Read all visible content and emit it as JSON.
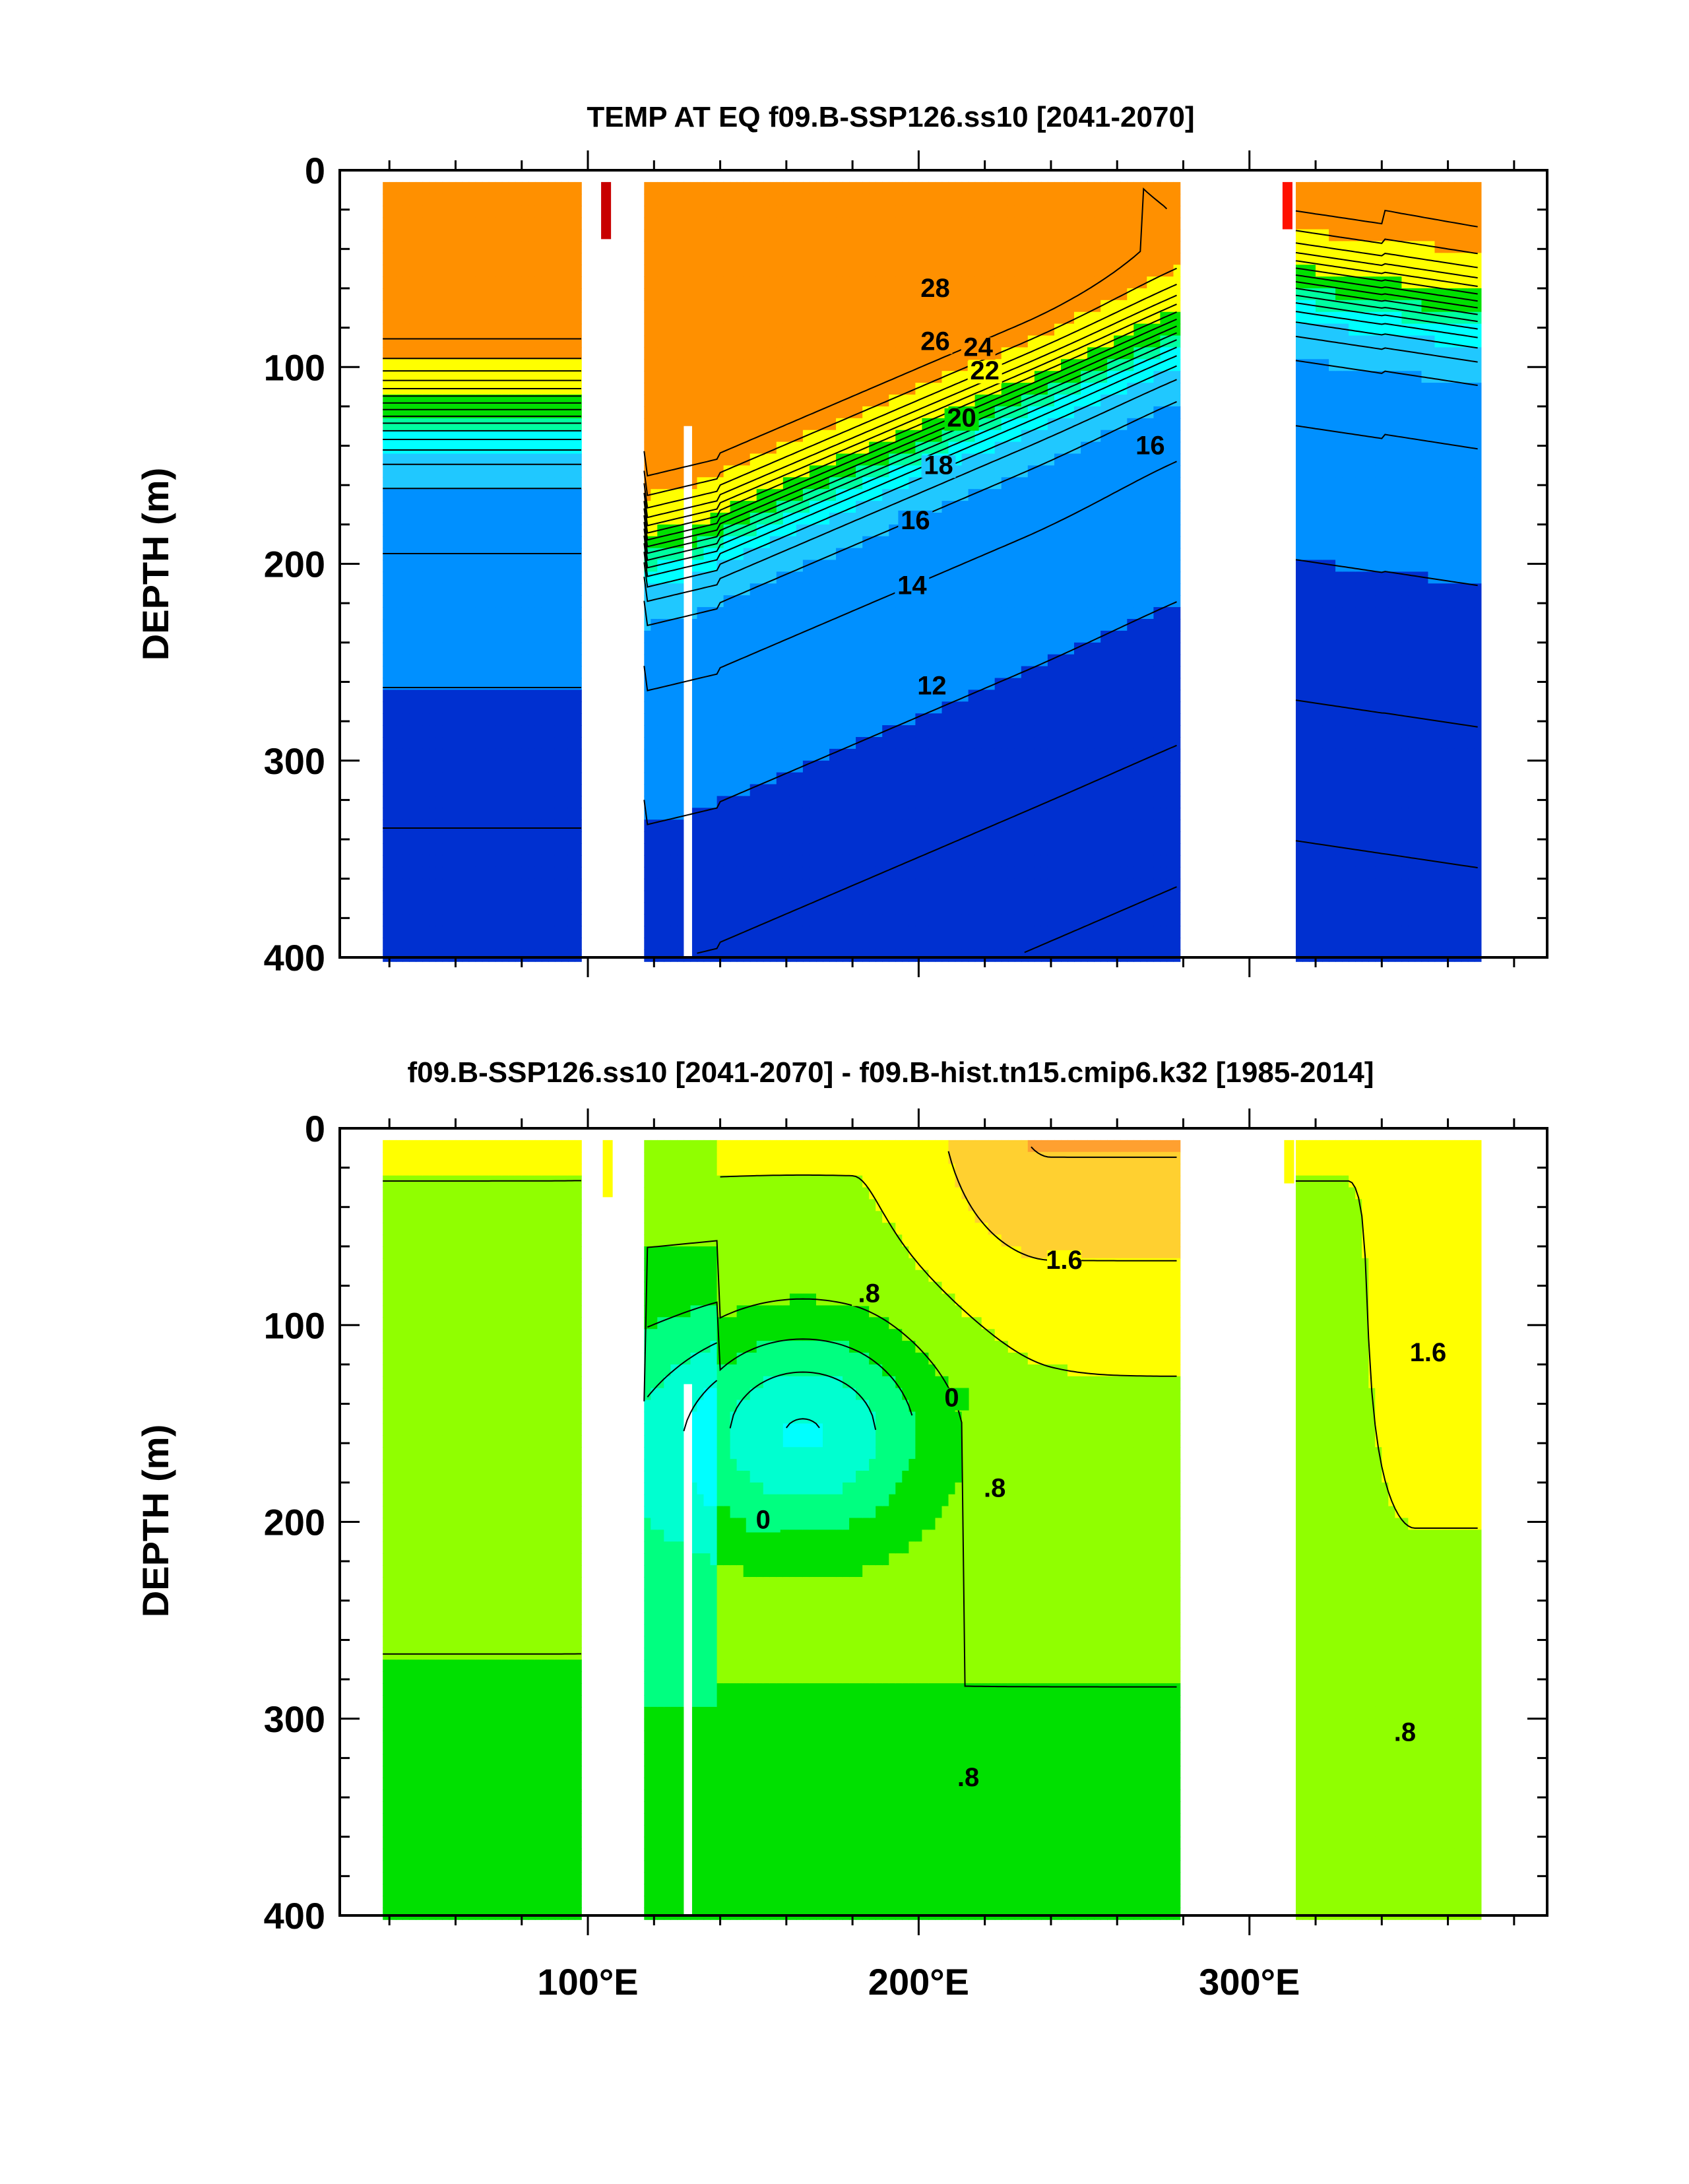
{
  "chart_data": [
    {
      "type": "heatmap",
      "subtype": "filled-contour depth-longitude section",
      "title": "TEMP AT EQ f09.B-SSP126.ss10 [2041-2070]",
      "xlabel": "",
      "ylabel": "DEPTH (m)",
      "xlim": [
        25,
        390
      ],
      "ylim": [
        400,
        0
      ],
      "xticks": [
        100,
        200,
        300
      ],
      "xticklabels": [
        "100°E",
        "200°E",
        "300°E"
      ],
      "yticks": [
        0,
        100,
        200,
        300,
        400
      ],
      "yticklabels": [
        "0",
        "100",
        "200",
        "300",
        "400"
      ],
      "ocean_segments_lon": [
        [
          38,
          98
        ],
        [
          117,
          278
        ],
        [
          314,
          369
        ]
      ],
      "contour_interval": 1,
      "contour_labels": [
        {
          "text": "28",
          "lon": 205,
          "depth": 63
        },
        {
          "text": "26",
          "lon": 205,
          "depth": 90
        },
        {
          "text": "24",
          "lon": 218,
          "depth": 93
        },
        {
          "text": "22",
          "lon": 220,
          "depth": 105
        },
        {
          "text": "20",
          "lon": 213,
          "depth": 129
        },
        {
          "text": "18",
          "lon": 206,
          "depth": 153
        },
        {
          "text": "16",
          "lon": 199,
          "depth": 181
        },
        {
          "text": "14",
          "lon": 198,
          "depth": 214
        },
        {
          "text": "12",
          "lon": 204,
          "depth": 265
        },
        {
          "text": "16",
          "lon": 270,
          "depth": 143
        }
      ],
      "color_levels": [
        {
          "min": 28,
          "color": "#c80000"
        },
        {
          "min": 26,
          "color": "#ff3000"
        },
        {
          "min": 24,
          "color": "#ff9000"
        },
        {
          "min": 20,
          "color": "#ffff00"
        },
        {
          "min": 17,
          "color": "#00e000"
        },
        {
          "min": 15,
          "color": "#00ffa0"
        },
        {
          "min": 13,
          "color": "#00ffff"
        },
        {
          "min": 11,
          "color": "#20c8ff"
        },
        {
          "min": 9,
          "color": "#0090ff"
        },
        {
          "min": 0,
          "color": "#0030d0"
        }
      ]
    },
    {
      "type": "heatmap",
      "subtype": "filled-contour depth-longitude section (difference)",
      "title": "f09.B-SSP126.ss10 [2041-2070] - f09.B-hist.tn15.cmip6.k32 [1985-2014]",
      "xlabel": "",
      "ylabel": "DEPTH (m)",
      "xlim": [
        25,
        390
      ],
      "ylim": [
        400,
        0
      ],
      "xticks": [
        100,
        200,
        300
      ],
      "xticklabels": [
        "100°E",
        "200°E",
        "300°E"
      ],
      "yticks": [
        0,
        100,
        200,
        300,
        400
      ],
      "yticklabels": [
        "0",
        "100",
        "200",
        "300",
        "400"
      ],
      "ocean_segments_lon": [
        [
          38,
          98
        ],
        [
          117,
          278
        ],
        [
          314,
          369
        ]
      ],
      "contour_interval": 0.4,
      "contour_labels": [
        {
          "text": ".8",
          "lon": 185,
          "depth": 87
        },
        {
          "text": "1.6",
          "lon": 244,
          "depth": 70
        },
        {
          "text": "0",
          "lon": 210,
          "depth": 140
        },
        {
          "text": "0",
          "lon": 153,
          "depth": 202
        },
        {
          "text": ".8",
          "lon": 223,
          "depth": 186
        },
        {
          "text": "1.6",
          "lon": 354,
          "depth": 117
        },
        {
          "text": ".8",
          "lon": 215,
          "depth": 333
        },
        {
          "text": ".8",
          "lon": 347,
          "depth": 310
        }
      ],
      "color_levels": [
        {
          "min": 2.0,
          "color": "#ffa030"
        },
        {
          "min": 1.6,
          "color": "#ffd030"
        },
        {
          "min": 1.2,
          "color": "#ffff00"
        },
        {
          "min": 0.8,
          "color": "#90ff00"
        },
        {
          "min": 0.4,
          "color": "#00e000"
        },
        {
          "min": 0.0,
          "color": "#00ff80"
        },
        {
          "min": -0.4,
          "color": "#00ffd0"
        },
        {
          "min": -9,
          "color": "#00ffff"
        }
      ]
    }
  ]
}
